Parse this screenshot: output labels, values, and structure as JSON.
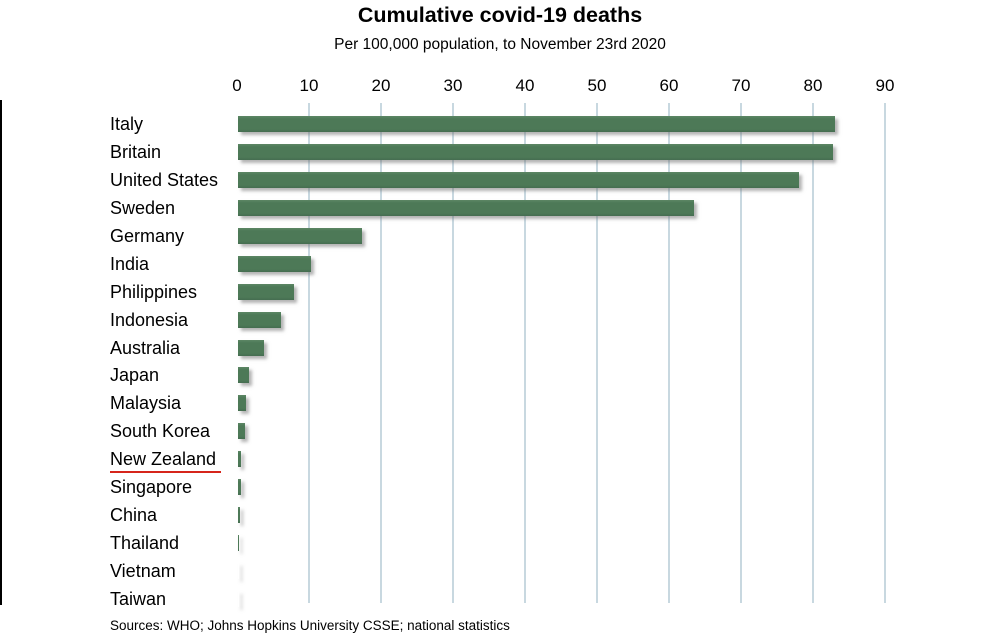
{
  "title": "Cumulative covid-19 deaths",
  "subtitle": "Per 100,000 population, to November 23rd 2020",
  "source": "Sources: WHO; Johns Hopkins University CSSE; national statistics",
  "colors": {
    "bar": "#4d7957",
    "gridline": "#c8d8e0",
    "axis": "#000000",
    "annotation_underline": "#d6251b",
    "background": "#ffffff",
    "text": "#000000"
  },
  "chart_data": {
    "type": "bar",
    "orientation": "horizontal",
    "title": "Cumulative covid-19 deaths",
    "subtitle": "Per 100,000 population, to November 23rd 2020",
    "xlabel": "",
    "ylabel": "",
    "xlim": [
      0,
      90
    ],
    "x_ticks": [
      0,
      10,
      20,
      30,
      40,
      50,
      60,
      70,
      80,
      90
    ],
    "grid": true,
    "tick_position": "top",
    "categories": [
      "Italy",
      "Britain",
      "United States",
      "Sweden",
      "Germany",
      "India",
      "Philippines",
      "Indonesia",
      "Australia",
      "Japan",
      "Malaysia",
      "South Korea",
      "New Zealand",
      "Singapore",
      "China",
      "Thailand",
      "Vietnam",
      "Taiwan"
    ],
    "values": [
      82.9,
      82.6,
      78.0,
      63.3,
      17.2,
      10.1,
      7.8,
      6.0,
      3.6,
      1.6,
      1.1,
      1.0,
      0.5,
      0.5,
      0.35,
      0.1,
      0.05,
      0.03
    ],
    "annotations": [
      {
        "category": "New Zealand",
        "style": "red-underline"
      }
    ]
  }
}
